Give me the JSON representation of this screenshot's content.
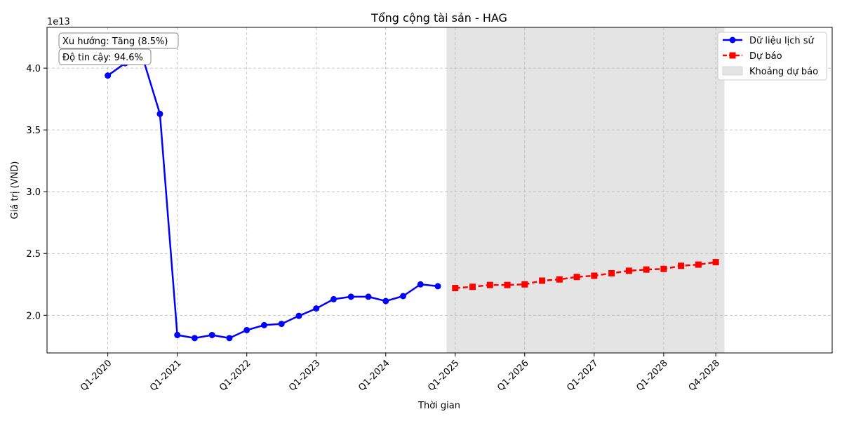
{
  "chart_data": {
    "type": "line",
    "title": "Tổng cộng tài sản - HAG",
    "xlabel": "Thời gian",
    "ylabel": "Giá trị (VND)",
    "y_multiplier": "1e13",
    "y_ticks": [
      "2.0",
      "2.5",
      "3.0",
      "3.5",
      "4.0"
    ],
    "y_tick_values": [
      2.0,
      2.5,
      3.0,
      3.5,
      4.0
    ],
    "ylim": [
      1.695,
      4.33
    ],
    "xlim": [
      -3.5,
      41.7
    ],
    "grid": true,
    "legend_position": "top-right",
    "x_tick_labels": [
      "Q1-2020",
      "Q1-2021",
      "Q1-2022",
      "Q1-2023",
      "Q1-2024",
      "Q1-2025",
      "Q1-2026",
      "Q1-2027",
      "Q1-2028",
      "Q4-2028"
    ],
    "x_tick_index": [
      0,
      4,
      8,
      12,
      16,
      20,
      24,
      28,
      32,
      35
    ],
    "series": [
      {
        "name": "Dữ liệu lịch sử",
        "color": "#0000ff",
        "marker": "circle",
        "style": "solid",
        "x": [
          0,
          1,
          2,
          3,
          4,
          5,
          6,
          7,
          8,
          9,
          10,
          11,
          12,
          13,
          14,
          15,
          16,
          17,
          18,
          19
        ],
        "values": [
          3.94,
          4.04,
          4.09,
          3.63,
          1.84,
          1.815,
          1.84,
          1.815,
          1.88,
          1.92,
          1.93,
          1.995,
          2.055,
          2.13,
          2.15,
          2.15,
          2.115,
          2.155,
          2.25,
          2.235
        ]
      },
      {
        "name": "Dự báo",
        "color": "#ff0000",
        "marker": "square",
        "style": "dashed",
        "x": [
          20,
          21,
          22,
          23,
          24,
          25,
          26,
          27,
          28,
          29,
          30,
          31,
          32,
          33,
          34,
          35
        ],
        "values": [
          2.22,
          2.23,
          2.245,
          2.245,
          2.25,
          2.28,
          2.29,
          2.31,
          2.32,
          2.34,
          2.36,
          2.37,
          2.375,
          2.4,
          2.41,
          2.43
        ]
      }
    ],
    "forecast_range": {
      "name": "Khoảng dự báo",
      "color": "#e4e4e4",
      "x_start": 19.5,
      "x_end": 35.5
    },
    "annotations": [
      "Xu hướng: Tăng (8.5%)",
      "Độ tin cậy: 94.6%"
    ]
  }
}
